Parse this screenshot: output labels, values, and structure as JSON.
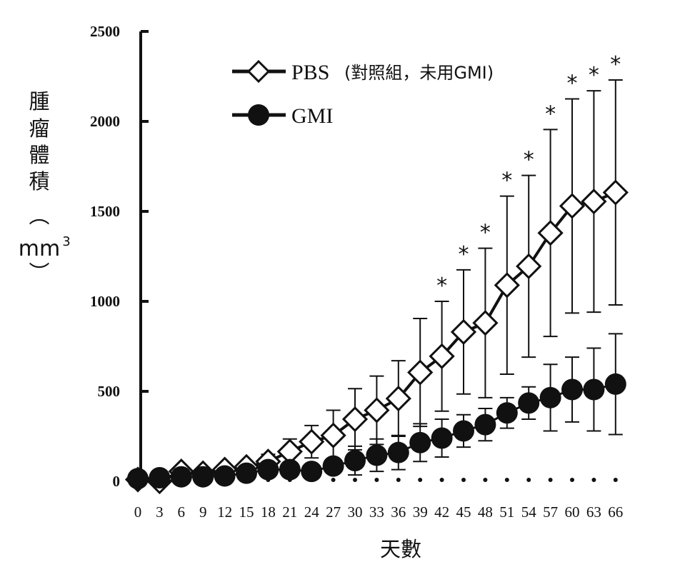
{
  "chart_data": {
    "type": "line",
    "ylabel_chars": [
      "腫",
      "瘤",
      "體",
      "積",
      "︵",
      "mm",
      "3",
      "︶"
    ],
    "xlabel": "天數",
    "ylim": [
      0,
      2500
    ],
    "yticks": [
      0,
      500,
      1000,
      1500,
      2000,
      2500
    ],
    "x": [
      0,
      3,
      6,
      9,
      12,
      15,
      18,
      21,
      24,
      27,
      30,
      33,
      36,
      39,
      42,
      45,
      48,
      51,
      54,
      57,
      60,
      63,
      66
    ],
    "series": [
      {
        "name": "PBS",
        "legend_note": "(對照組，未用GMI)",
        "marker": "open-diamond",
        "values": [
          10,
          0,
          55,
          45,
          65,
          80,
          110,
          165,
          220,
          255,
          345,
          395,
          460,
          605,
          695,
          830,
          880,
          1090,
          1195,
          1380,
          1530,
          1555,
          1605
        ],
        "error": [
          5,
          5,
          10,
          10,
          15,
          20,
          40,
          70,
          90,
          140,
          170,
          190,
          210,
          300,
          305,
          345,
          415,
          495,
          505,
          575,
          595,
          615,
          625
        ]
      },
      {
        "name": "GMI",
        "marker": "filled-circle",
        "values": [
          15,
          20,
          25,
          25,
          30,
          45,
          65,
          65,
          55,
          85,
          115,
          145,
          160,
          215,
          240,
          280,
          315,
          380,
          435,
          465,
          510,
          510,
          540
        ],
        "error": [
          5,
          5,
          5,
          5,
          5,
          10,
          20,
          25,
          25,
          40,
          80,
          90,
          95,
          105,
          105,
          90,
          90,
          85,
          90,
          185,
          180,
          230,
          280
        ]
      }
    ],
    "significance_marker": "*",
    "significant_x": [
      42,
      45,
      48,
      51,
      54,
      57,
      60,
      63,
      66
    ],
    "grid": false,
    "legend_position": "top-center"
  }
}
